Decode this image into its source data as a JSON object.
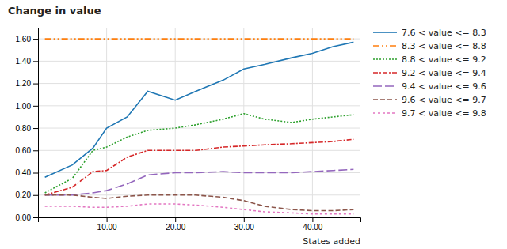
{
  "chart_data": {
    "type": "line",
    "title": "Change in value",
    "x_label": "States added",
    "x": [
      1,
      5,
      8,
      10,
      13,
      16,
      20,
      23,
      27,
      30,
      33,
      37,
      40,
      43,
      46
    ],
    "xlim": [
      0,
      47
    ],
    "ylim": [
      0.0,
      1.7
    ],
    "xticks": [
      {
        "value": 10.0,
        "label": "10.00"
      },
      {
        "value": 20.0,
        "label": "20.00"
      },
      {
        "value": 30.0,
        "label": "30.00"
      },
      {
        "value": 40.0,
        "label": "40.00"
      }
    ],
    "yticks": [
      {
        "value": 0.0,
        "label": "0.00"
      },
      {
        "value": 0.2,
        "label": "0.20"
      },
      {
        "value": 0.4,
        "label": "0.40"
      },
      {
        "value": 0.6,
        "label": "0.60"
      },
      {
        "value": 0.8,
        "label": "0.80"
      },
      {
        "value": 1.0,
        "label": "1.00"
      },
      {
        "value": 1.2,
        "label": "1.20"
      },
      {
        "value": 1.4,
        "label": "1.40"
      },
      {
        "value": 1.6,
        "label": "1.60"
      }
    ],
    "grid": true,
    "legend": "right",
    "series": [
      {
        "name": "7.6 < value <= 8.3",
        "line_style": "solid",
        "values": [
          0.36,
          0.47,
          0.62,
          0.8,
          0.9,
          1.13,
          1.05,
          1.13,
          1.23,
          1.33,
          1.37,
          1.43,
          1.47,
          1.53,
          1.57
        ]
      },
      {
        "name": "8.3 < value <= 8.8",
        "line_style": "dash-dot-dot",
        "values": [
          1.6,
          1.6,
          1.6,
          1.6,
          1.6,
          1.6,
          1.6,
          1.6,
          1.6,
          1.6,
          1.6,
          1.6,
          1.6,
          1.6,
          1.6
        ]
      },
      {
        "name": "8.8 < value <= 9.2",
        "line_style": "dotted",
        "values": [
          0.22,
          0.35,
          0.6,
          0.63,
          0.72,
          0.78,
          0.8,
          0.83,
          0.88,
          0.93,
          0.88,
          0.85,
          0.88,
          0.9,
          0.92
        ]
      },
      {
        "name": "9.2 < value <= 9.4",
        "line_style": "dash-dot",
        "values": [
          0.2,
          0.27,
          0.41,
          0.42,
          0.54,
          0.6,
          0.6,
          0.6,
          0.63,
          0.64,
          0.65,
          0.66,
          0.67,
          0.68,
          0.7
        ]
      },
      {
        "name": "9.4 < value <= 9.6",
        "line_style": "long-dash",
        "values": [
          0.2,
          0.2,
          0.22,
          0.24,
          0.3,
          0.38,
          0.4,
          0.4,
          0.41,
          0.4,
          0.4,
          0.4,
          0.41,
          0.42,
          0.43
        ]
      },
      {
        "name": "9.6 < value <= 9.7",
        "line_style": "dashed",
        "values": [
          0.2,
          0.2,
          0.18,
          0.17,
          0.19,
          0.2,
          0.2,
          0.2,
          0.18,
          0.15,
          0.1,
          0.07,
          0.06,
          0.06,
          0.07
        ]
      },
      {
        "name": "9.7 < value <= 9.8",
        "line_style": "short-dash",
        "values": [
          0.1,
          0.1,
          0.09,
          0.09,
          0.1,
          0.12,
          0.12,
          0.11,
          0.09,
          0.07,
          0.05,
          0.04,
          0.03,
          0.03,
          0.03
        ]
      }
    ]
  }
}
